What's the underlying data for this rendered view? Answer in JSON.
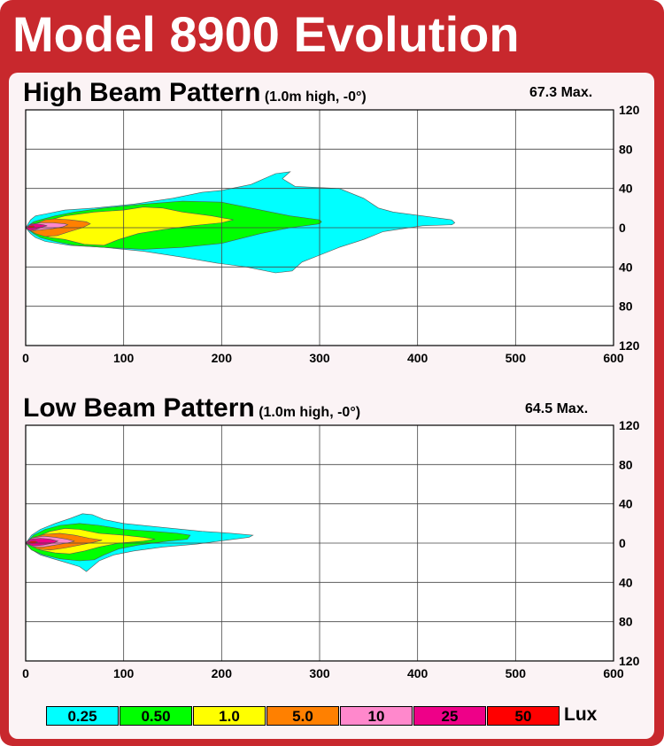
{
  "title": "Model 8900 Evolution",
  "legend_unit": "Lux",
  "chart_data": [
    {
      "type": "contour",
      "title": "High Beam Pattern",
      "subtitle": "(1.0m high, -0°)",
      "max_label": "67.3 Max.",
      "xlim": [
        0,
        600
      ],
      "ylim": [
        -120,
        120
      ],
      "x_ticks": [
        0,
        100,
        200,
        300,
        400,
        500,
        600
      ],
      "y_ticks": [
        120,
        80,
        40,
        0,
        -40,
        -80,
        -120
      ],
      "y_tick_labels": [
        "120",
        "80",
        "40",
        "0",
        "40",
        "80",
        "120"
      ],
      "series": [
        {
          "name": "0.25",
          "color": "#00ffff",
          "points": [
            [
              0,
              0
            ],
            [
              5,
              8
            ],
            [
              10,
              12
            ],
            [
              20,
              14
            ],
            [
              40,
              18
            ],
            [
              70,
              20
            ],
            [
              110,
              24
            ],
            [
              150,
              30
            ],
            [
              180,
              36
            ],
            [
              200,
              38
            ],
            [
              230,
              44
            ],
            [
              255,
              55
            ],
            [
              270,
              57
            ],
            [
              262,
              50
            ],
            [
              275,
              42
            ],
            [
              320,
              40
            ],
            [
              345,
              30
            ],
            [
              360,
              20
            ],
            [
              375,
              16
            ],
            [
              405,
              12
            ],
            [
              435,
              8
            ],
            [
              438,
              5
            ],
            [
              435,
              3
            ],
            [
              405,
              2
            ],
            [
              365,
              -4
            ],
            [
              345,
              -12
            ],
            [
              320,
              -20
            ],
            [
              300,
              -28
            ],
            [
              282,
              -35
            ],
            [
              272,
              -44
            ],
            [
              255,
              -46
            ],
            [
              225,
              -40
            ],
            [
              195,
              -36
            ],
            [
              160,
              -30
            ],
            [
              120,
              -24
            ],
            [
              80,
              -20
            ],
            [
              45,
              -18
            ],
            [
              20,
              -14
            ],
            [
              10,
              -10
            ],
            [
              5,
              -6
            ]
          ]
        },
        {
          "name": "0.50",
          "color": "#00ff00",
          "points": [
            [
              0,
              0
            ],
            [
              8,
              6
            ],
            [
              15,
              8
            ],
            [
              30,
              12
            ],
            [
              50,
              16
            ],
            [
              80,
              20
            ],
            [
              120,
              24
            ],
            [
              160,
              27
            ],
            [
              200,
              26
            ],
            [
              240,
              18
            ],
            [
              270,
              12
            ],
            [
              300,
              8
            ],
            [
              302,
              6
            ],
            [
              300,
              4
            ],
            [
              270,
              0
            ],
            [
              240,
              -6
            ],
            [
              200,
              -16
            ],
            [
              160,
              -20
            ],
            [
              120,
              -22
            ],
            [
              80,
              -20
            ],
            [
              50,
              -18
            ],
            [
              30,
              -14
            ],
            [
              15,
              -10
            ],
            [
              8,
              -6
            ]
          ]
        },
        {
          "name": "1.0",
          "color": "#ffff00",
          "points": [
            [
              0,
              0
            ],
            [
              12,
              5
            ],
            [
              25,
              8
            ],
            [
              40,
              12
            ],
            [
              70,
              16
            ],
            [
              100,
              18
            ],
            [
              120,
              21
            ],
            [
              140,
              20
            ],
            [
              160,
              16
            ],
            [
              190,
              12
            ],
            [
              212,
              8
            ],
            [
              200,
              5
            ],
            [
              170,
              2
            ],
            [
              140,
              -2
            ],
            [
              115,
              -6
            ],
            [
              95,
              -12
            ],
            [
              80,
              -18
            ],
            [
              60,
              -17
            ],
            [
              40,
              -12
            ],
            [
              25,
              -10
            ],
            [
              12,
              -6
            ]
          ]
        },
        {
          "name": "5.0",
          "color": "#ff8000",
          "points": [
            [
              0,
              0
            ],
            [
              10,
              4
            ],
            [
              20,
              8
            ],
            [
              30,
              9
            ],
            [
              45,
              8
            ],
            [
              62,
              6
            ],
            [
              66,
              4
            ],
            [
              58,
              0
            ],
            [
              45,
              -4
            ],
            [
              32,
              -8
            ],
            [
              20,
              -9
            ],
            [
              10,
              -6
            ]
          ]
        },
        {
          "name": "10",
          "color": "#ff88cc",
          "points": [
            [
              0,
              0
            ],
            [
              6,
              4
            ],
            [
              15,
              5
            ],
            [
              28,
              5
            ],
            [
              40,
              4
            ],
            [
              43,
              3
            ],
            [
              38,
              1
            ],
            [
              28,
              -1
            ],
            [
              18,
              -2
            ],
            [
              8,
              -3
            ]
          ]
        },
        {
          "name": "25",
          "color": "#ee0088",
          "points": [
            [
              0,
              0
            ],
            [
              4,
              3
            ],
            [
              10,
              4
            ],
            [
              18,
              3
            ],
            [
              22,
              2
            ],
            [
              18,
              1
            ],
            [
              10,
              -2
            ],
            [
              4,
              -3
            ]
          ]
        },
        {
          "name": "50",
          "color": "#ff0000",
          "points": [
            [
              2,
              1
            ],
            [
              5,
              2
            ],
            [
              8,
              2
            ],
            [
              9,
              1
            ],
            [
              7,
              0
            ],
            [
              4,
              0
            ]
          ]
        }
      ]
    },
    {
      "type": "contour",
      "title": "Low Beam Pattern",
      "subtitle": "(1.0m high, -0°)",
      "max_label": "64.5 Max.",
      "xlim": [
        0,
        600
      ],
      "ylim": [
        -120,
        120
      ],
      "x_ticks": [
        0,
        100,
        200,
        300,
        400,
        500,
        600
      ],
      "y_ticks": [
        120,
        80,
        40,
        0,
        -40,
        -80,
        -120
      ],
      "y_tick_labels": [
        "120",
        "80",
        "40",
        "0",
        "40",
        "80",
        "120"
      ],
      "series": [
        {
          "name": "0.25",
          "color": "#00ffff",
          "points": [
            [
              0,
              0
            ],
            [
              6,
              8
            ],
            [
              15,
              14
            ],
            [
              30,
              20
            ],
            [
              45,
              25
            ],
            [
              58,
              30
            ],
            [
              68,
              29
            ],
            [
              80,
              24
            ],
            [
              100,
              20
            ],
            [
              140,
              16
            ],
            [
              180,
              12
            ],
            [
              210,
              10
            ],
            [
              232,
              8
            ],
            [
              228,
              6
            ],
            [
              205,
              3
            ],
            [
              175,
              -1
            ],
            [
              140,
              -4
            ],
            [
              110,
              -8
            ],
            [
              90,
              -12
            ],
            [
              75,
              -18
            ],
            [
              62,
              -29
            ],
            [
              55,
              -24
            ],
            [
              42,
              -20
            ],
            [
              28,
              -16
            ],
            [
              15,
              -12
            ],
            [
              5,
              -6
            ]
          ]
        },
        {
          "name": "0.50",
          "color": "#00ff00",
          "points": [
            [
              0,
              0
            ],
            [
              8,
              8
            ],
            [
              20,
              14
            ],
            [
              35,
              18
            ],
            [
              55,
              20
            ],
            [
              75,
              18
            ],
            [
              100,
              14
            ],
            [
              130,
              12
            ],
            [
              155,
              10
            ],
            [
              168,
              8
            ],
            [
              165,
              4
            ],
            [
              145,
              2
            ],
            [
              115,
              -2
            ],
            [
              95,
              -6
            ],
            [
              80,
              -12
            ],
            [
              70,
              -17
            ],
            [
              55,
              -18
            ],
            [
              35,
              -16
            ],
            [
              18,
              -12
            ],
            [
              6,
              -7
            ]
          ]
        },
        {
          "name": "1.0",
          "color": "#ffff00",
          "points": [
            [
              0,
              0
            ],
            [
              10,
              6
            ],
            [
              25,
              12
            ],
            [
              40,
              15
            ],
            [
              55,
              14
            ],
            [
              75,
              10
            ],
            [
              100,
              8
            ],
            [
              120,
              6
            ],
            [
              132,
              4
            ],
            [
              120,
              2
            ],
            [
              95,
              0
            ],
            [
              75,
              -4
            ],
            [
              60,
              -8
            ],
            [
              45,
              -11
            ],
            [
              30,
              -10
            ],
            [
              15,
              -7
            ]
          ]
        },
        {
          "name": "5.0",
          "color": "#ff8000",
          "points": [
            [
              0,
              0
            ],
            [
              8,
              6
            ],
            [
              20,
              9
            ],
            [
              35,
              10
            ],
            [
              50,
              8
            ],
            [
              65,
              5
            ],
            [
              78,
              3
            ],
            [
              70,
              1
            ],
            [
              55,
              -2
            ],
            [
              40,
              -5
            ],
            [
              25,
              -7
            ],
            [
              12,
              -6
            ]
          ]
        },
        {
          "name": "10",
          "color": "#ff88cc",
          "points": [
            [
              0,
              0
            ],
            [
              6,
              5
            ],
            [
              18,
              7
            ],
            [
              30,
              6
            ],
            [
              42,
              4
            ],
            [
              50,
              2
            ],
            [
              42,
              0
            ],
            [
              30,
              -2
            ],
            [
              18,
              -4
            ],
            [
              8,
              -4
            ]
          ]
        },
        {
          "name": "25",
          "color": "#ee0088",
          "points": [
            [
              0,
              0
            ],
            [
              5,
              4
            ],
            [
              15,
              5
            ],
            [
              25,
              4
            ],
            [
              33,
              2
            ],
            [
              28,
              0
            ],
            [
              18,
              -2
            ],
            [
              8,
              -3
            ]
          ]
        },
        {
          "name": "50",
          "color": "#ff0000",
          "points": [
            [
              3,
              1
            ],
            [
              6,
              2
            ],
            [
              10,
              2
            ],
            [
              12,
              1
            ],
            [
              9,
              0
            ],
            [
              5,
              0
            ]
          ]
        }
      ]
    }
  ]
}
